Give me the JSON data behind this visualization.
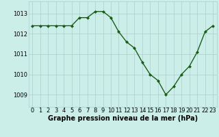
{
  "x": [
    0,
    1,
    2,
    3,
    4,
    5,
    6,
    7,
    8,
    9,
    10,
    11,
    12,
    13,
    14,
    15,
    16,
    17,
    18,
    19,
    20,
    21,
    22,
    23
  ],
  "y": [
    1012.4,
    1012.4,
    1012.4,
    1012.4,
    1012.4,
    1012.4,
    1012.8,
    1012.8,
    1013.1,
    1013.1,
    1012.8,
    1012.1,
    1011.6,
    1011.3,
    1010.6,
    1010.0,
    1009.7,
    1009.0,
    1009.4,
    1010.0,
    1010.4,
    1011.1,
    1012.1,
    1012.4
  ],
  "line_color": "#1a5c1a",
  "marker": "D",
  "markersize": 2.0,
  "linewidth": 1.0,
  "background_color": "#cceee8",
  "grid_color": "#aacccc",
  "xlabel": "Graphe pression niveau de la mer (hPa)",
  "xlabel_fontsize": 7,
  "xtick_labels": [
    "0",
    "1",
    "2",
    "3",
    "4",
    "5",
    "6",
    "7",
    "8",
    "9",
    "10",
    "11",
    "12",
    "13",
    "14",
    "15",
    "16",
    "17",
    "18",
    "19",
    "20",
    "21",
    "22",
    "23"
  ],
  "ytick_values": [
    1009,
    1010,
    1011,
    1012,
    1013
  ],
  "ylim": [
    1008.4,
    1013.6
  ],
  "xlim": [
    -0.5,
    23.5
  ],
  "tick_fontsize": 6.0
}
